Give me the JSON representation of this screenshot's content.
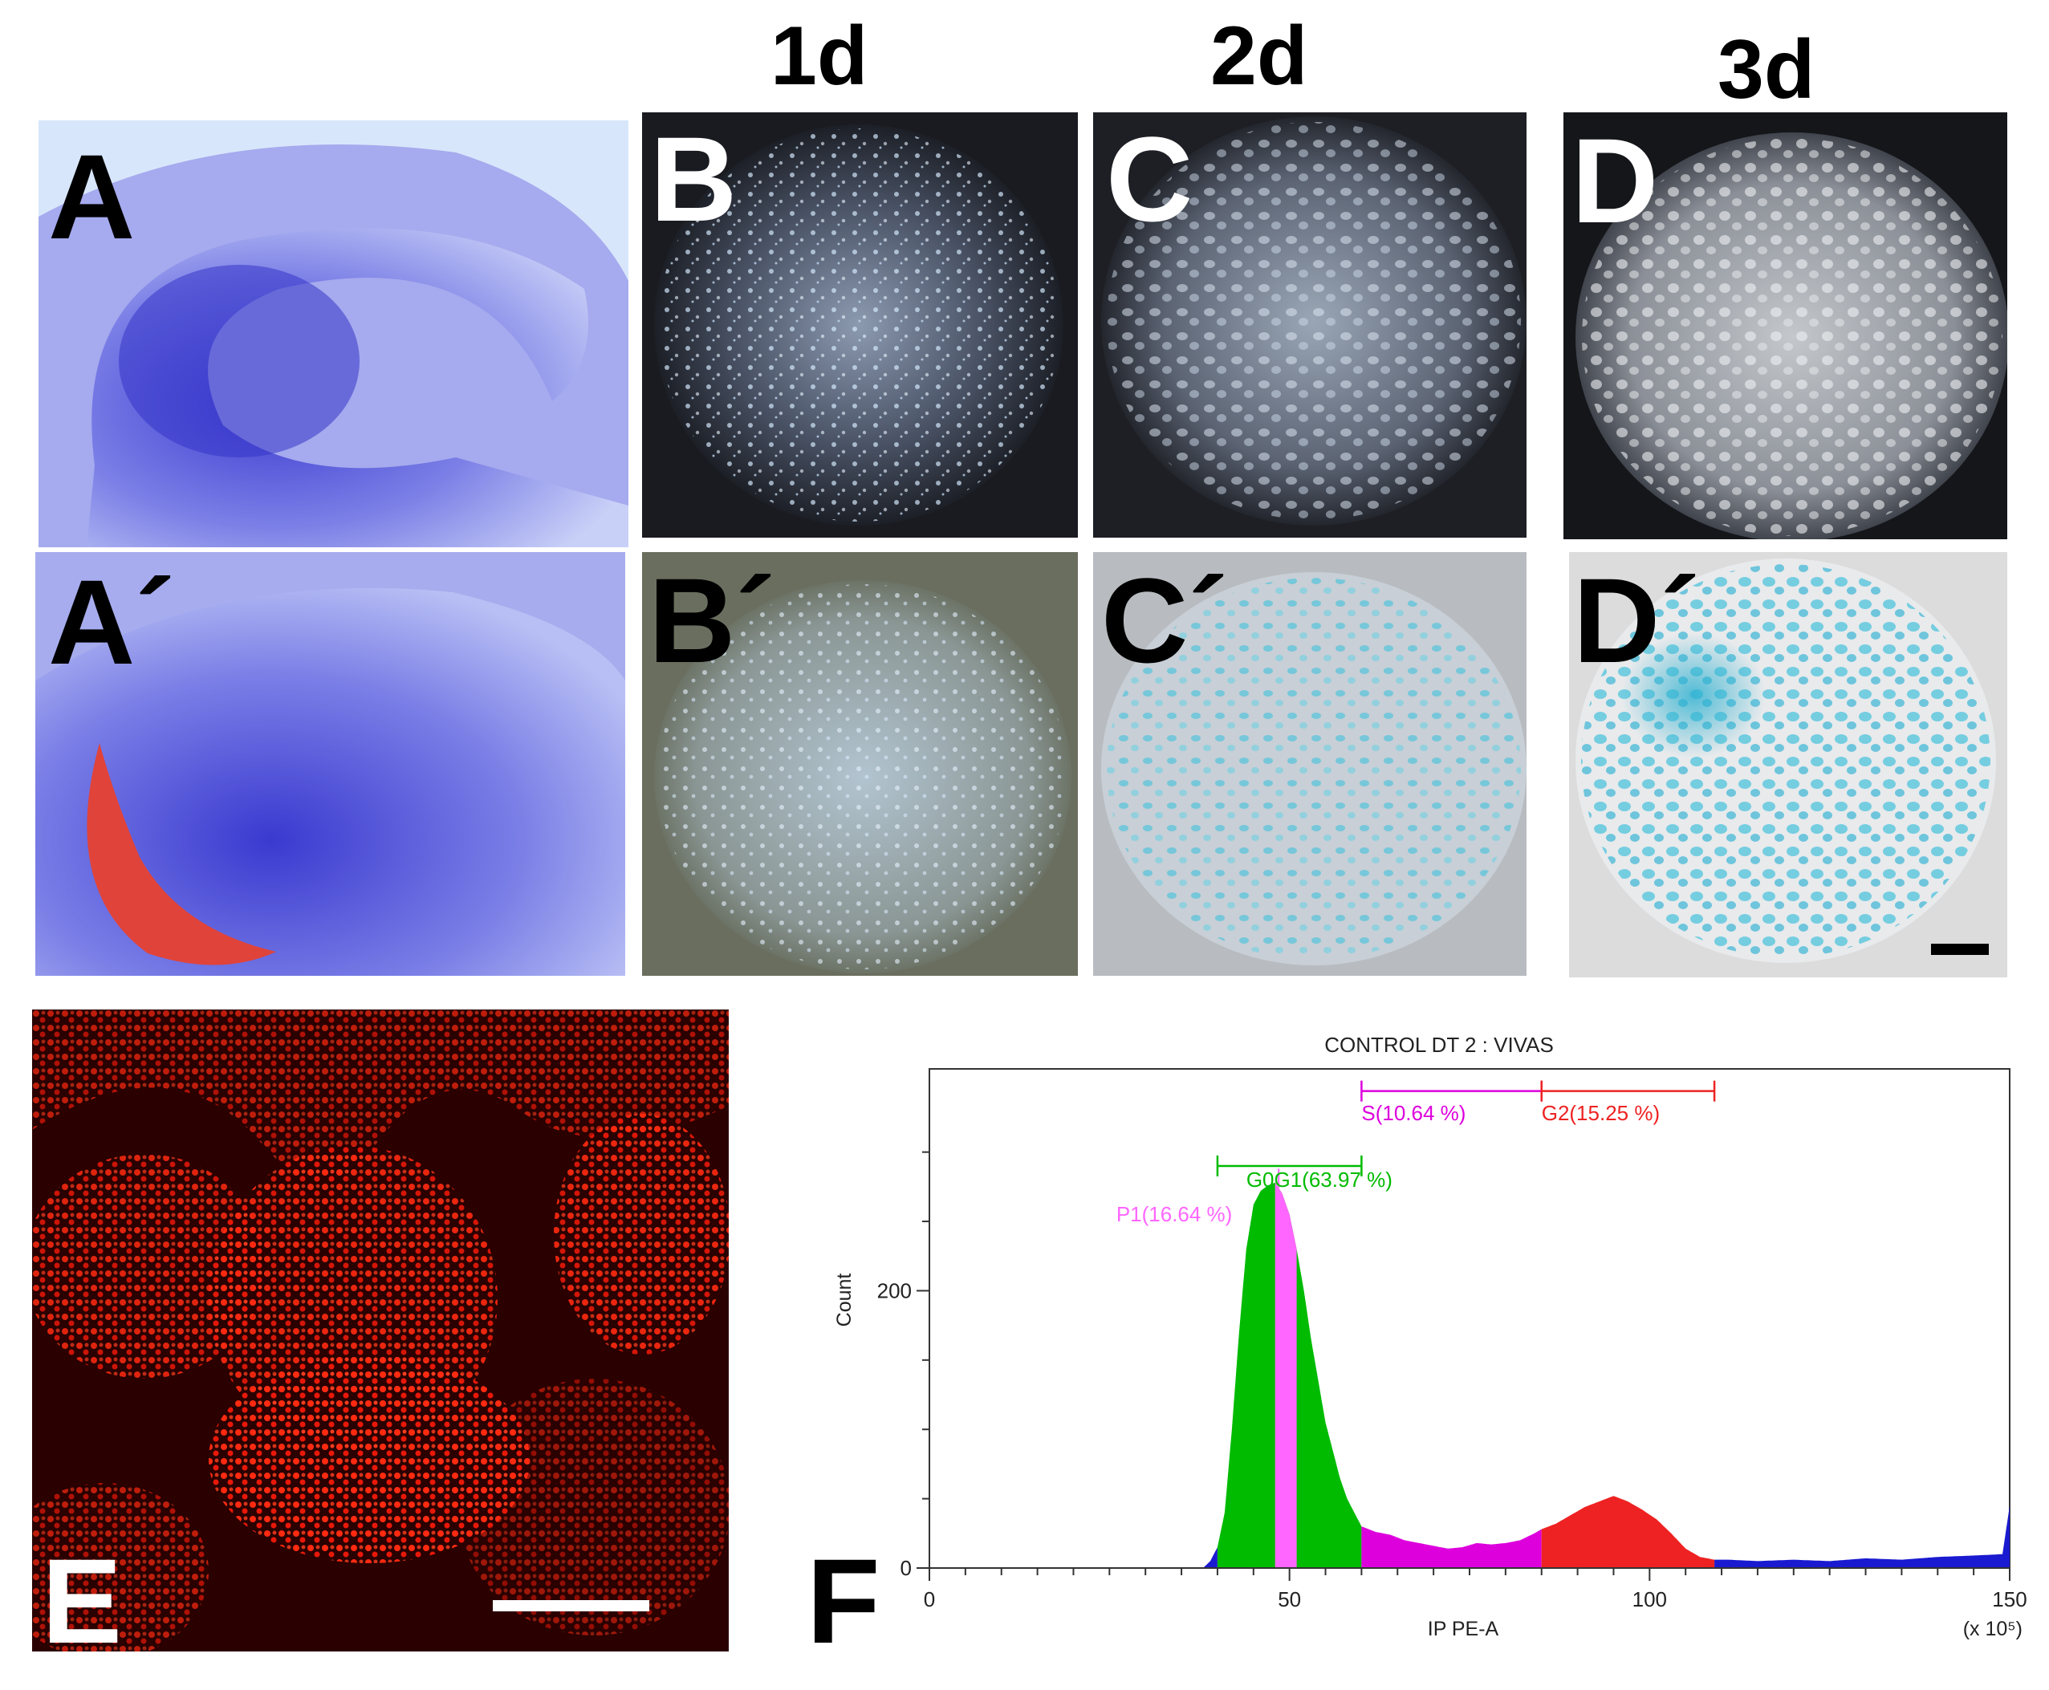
{
  "columns": [
    "1d",
    "2d",
    "3d"
  ],
  "panel_labels": {
    "A": "A",
    "A_prime": "A´",
    "B": "B",
    "B_prime": "B´",
    "C": "C",
    "C_prime": "C´",
    "D": "D",
    "D_prime": "D´",
    "E": "E",
    "F": "F"
  },
  "colors": {
    "embryo_stain": "#5a5ee0",
    "overlay_red": "#e0433a",
    "xgal_blue": "#49c2dc",
    "fluor_red": "#ff1a0a"
  },
  "chart_data": {
    "type": "area",
    "title": "CONTROL DT 2 : VIVAS",
    "xlabel": "IP PE-A",
    "ylabel": "Count",
    "x_unit": "(x 10⁵)",
    "xlim": [
      0,
      150
    ],
    "ylim": [
      0,
      360
    ],
    "x_ticks": [
      0,
      50,
      100,
      150
    ],
    "y_ticks": [
      0,
      200
    ],
    "gates": [
      {
        "name": "P1",
        "label": "P1(16.64 %)",
        "pct": 16.64,
        "range": [
          48,
          51
        ],
        "color": "#ff66ff"
      },
      {
        "name": "G0G1",
        "label": "G0G1(63.97 %)",
        "pct": 63.97,
        "range": [
          40,
          60
        ],
        "color": "#00bb00"
      },
      {
        "name": "S",
        "label": "S(10.64 %)",
        "pct": 10.64,
        "range": [
          60,
          85
        ],
        "color": "#dd00dd"
      },
      {
        "name": "G2",
        "label": "G2(15.25 %)",
        "pct": 15.25,
        "range": [
          85,
          109
        ],
        "color": "#ee2222"
      }
    ],
    "histogram": {
      "x": [
        38,
        39,
        40,
        41,
        42,
        43,
        44,
        45,
        46,
        47,
        48,
        49,
        50,
        51,
        52,
        53,
        54,
        55,
        56,
        57,
        58,
        59,
        60,
        62,
        64,
        66,
        68,
        70,
        72,
        74,
        76,
        78,
        80,
        82,
        84,
        85,
        87,
        89,
        91,
        93,
        95,
        97,
        99,
        101,
        103,
        105,
        107,
        109,
        111,
        115,
        120,
        125,
        130,
        135,
        140,
        145,
        149,
        150
      ],
      "y": [
        0,
        5,
        15,
        40,
        100,
        170,
        230,
        262,
        272,
        276,
        278,
        270,
        255,
        230,
        200,
        165,
        135,
        105,
        85,
        65,
        50,
        40,
        30,
        26,
        24,
        20,
        18,
        16,
        14,
        15,
        18,
        17,
        18,
        20,
        25,
        28,
        32,
        38,
        44,
        48,
        52,
        48,
        42,
        35,
        25,
        14,
        8,
        6,
        6,
        5,
        6,
        5,
        7,
        6,
        8,
        9,
        10,
        45
      ]
    }
  }
}
